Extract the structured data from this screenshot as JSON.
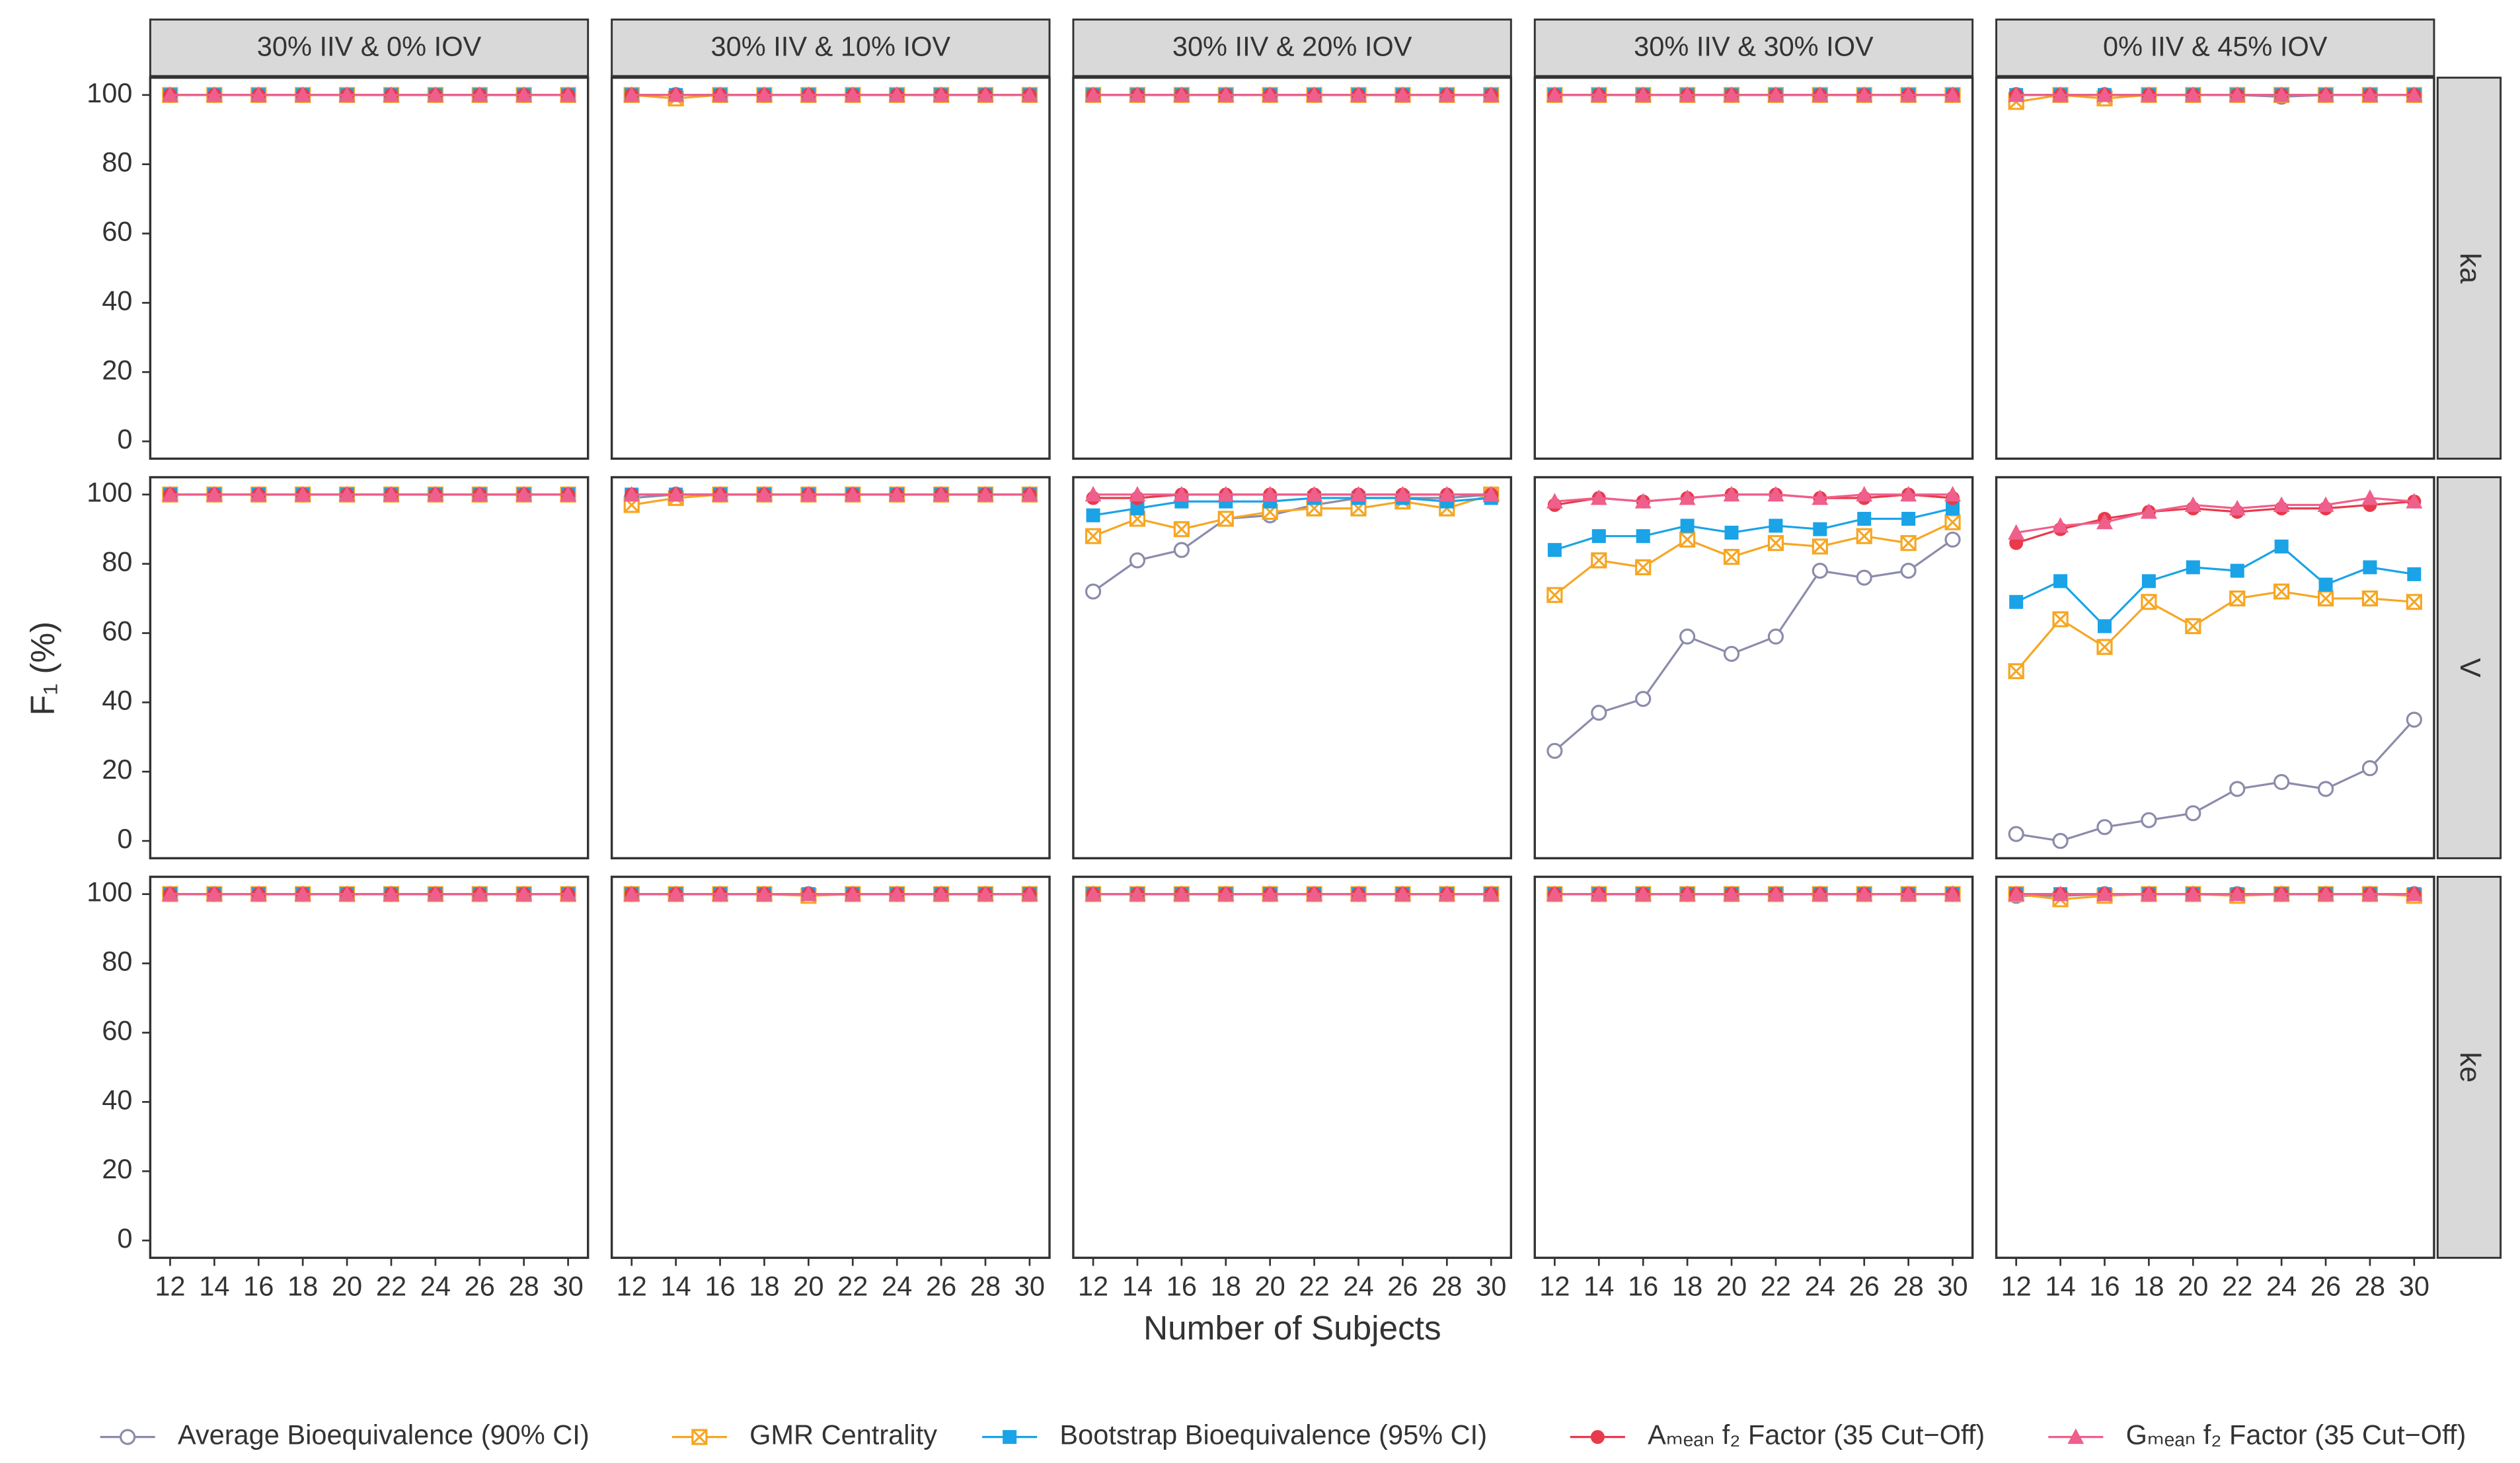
{
  "chart_data": {
    "type": "line",
    "xlabel": "Number of Subjects",
    "ylabel": "F₁ (%)",
    "columns": [
      "30% IIV & 0% IOV",
      "30% IIV & 10% IOV",
      "30% IIV & 20% IOV",
      "30% IIV & 30% IOV",
      "0% IIV & 45% IOV"
    ],
    "rows": [
      "ka",
      "V",
      "ke"
    ],
    "x": [
      12,
      14,
      16,
      18,
      20,
      22,
      24,
      26,
      28,
      30
    ],
    "xlim": [
      11.1,
      30.9
    ],
    "xticks": [
      12,
      14,
      16,
      18,
      20,
      22,
      24,
      26,
      28,
      30
    ],
    "ylim": [
      -5,
      105
    ],
    "yticks": [
      0,
      20,
      40,
      60,
      80,
      100
    ],
    "grid": false,
    "legend": "bottom",
    "series": [
      {
        "name": "Average Bioequivalence (90% CI)",
        "color": "#8b8bab",
        "marker": "open-circle"
      },
      {
        "name": "GMR Centrality",
        "color": "#f6a623",
        "marker": "crossed-square"
      },
      {
        "name": "Bootstrap Bioequivalence (95% CI)",
        "color": "#1aa3e6",
        "marker": "square"
      },
      {
        "name": "Aₘₑₐₙ f₂ Factor (35 Cut−Off)",
        "color": "#e83a4b",
        "marker": "circle"
      },
      {
        "name": "Gₘₑₐₙ f₂ Factor (35 Cut−Off)",
        "color": "#ef5f8c",
        "marker": "triangle"
      }
    ],
    "panels": [
      [
        [
          [
            100,
            100,
            100,
            100,
            100,
            100,
            100,
            100,
            100,
            100
          ],
          [
            100,
            100,
            100,
            100,
            100,
            100,
            100,
            100,
            100,
            100
          ],
          [
            100,
            100,
            100,
            100,
            100,
            100,
            100,
            100,
            100,
            100
          ],
          [
            100,
            100,
            100,
            100,
            100,
            100,
            100,
            100,
            100,
            100
          ],
          [
            100,
            100,
            100,
            100,
            100,
            100,
            100,
            100,
            100,
            100
          ]
        ],
        [
          [
            100,
            100,
            100,
            100,
            100,
            100,
            100,
            100,
            100,
            100
          ],
          [
            100,
            99,
            100,
            100,
            100,
            100,
            100,
            100,
            100,
            100
          ],
          [
            100,
            100,
            100,
            100,
            100,
            100,
            100,
            100,
            100,
            100
          ],
          [
            100,
            100,
            100,
            100,
            100,
            100,
            100,
            100,
            100,
            100
          ],
          [
            100,
            100,
            100,
            100,
            100,
            100,
            100,
            100,
            100,
            100
          ]
        ],
        [
          [
            100,
            100,
            100,
            100,
            100,
            100,
            100,
            100,
            100,
            100
          ],
          [
            100,
            100,
            100,
            100,
            100,
            100,
            100,
            100,
            100,
            100
          ],
          [
            100,
            100,
            100,
            100,
            100,
            100,
            100,
            100,
            100,
            100
          ],
          [
            100,
            100,
            100,
            100,
            100,
            100,
            100,
            100,
            100,
            100
          ],
          [
            100,
            100,
            100,
            100,
            100,
            100,
            100,
            100,
            100,
            100
          ]
        ],
        [
          [
            100,
            100,
            100,
            100,
            100,
            100,
            100,
            100,
            100,
            100
          ],
          [
            100,
            100,
            100,
            100,
            100,
            100,
            100,
            100,
            100,
            100
          ],
          [
            100,
            100,
            100,
            100,
            100,
            100,
            100,
            100,
            100,
            100
          ],
          [
            100,
            100,
            100,
            100,
            100,
            100,
            100,
            100,
            100,
            100
          ],
          [
            100,
            100,
            100,
            100,
            100,
            100,
            100,
            100,
            100,
            100
          ]
        ],
        [
          [
            100,
            100,
            100,
            100,
            100,
            100,
            99.5,
            100,
            100,
            100
          ],
          [
            98,
            100,
            99,
            100,
            100,
            100,
            100,
            100,
            100,
            100
          ],
          [
            100,
            100,
            100,
            100,
            100,
            100,
            100,
            100,
            100,
            100
          ],
          [
            100,
            100,
            100,
            100,
            100,
            100,
            100,
            100,
            100,
            100
          ],
          [
            100,
            100,
            100,
            100,
            100,
            100,
            100,
            100,
            100,
            100
          ]
        ]
      ],
      [
        [
          [
            100,
            100,
            100,
            100,
            100,
            100,
            100,
            100,
            100,
            100
          ],
          [
            100,
            100,
            100,
            100,
            100,
            100,
            100,
            100,
            100,
            100
          ],
          [
            100,
            100,
            100,
            100,
            100,
            100,
            100,
            100,
            100,
            100
          ],
          [
            100,
            100,
            100,
            100,
            100,
            100,
            100,
            100,
            100,
            100
          ],
          [
            100,
            100,
            100,
            100,
            100,
            100,
            100,
            100,
            100,
            100
          ]
        ],
        [
          [
            99,
            100,
            100,
            100,
            100,
            100,
            100,
            100,
            100,
            100
          ],
          [
            97,
            99,
            100,
            100,
            100,
            100,
            100,
            100,
            100,
            100
          ],
          [
            100,
            100,
            100,
            100,
            100,
            100,
            100,
            100,
            100,
            100
          ],
          [
            100,
            100,
            100,
            100,
            100,
            100,
            100,
            100,
            100,
            100
          ],
          [
            100,
            100,
            100,
            100,
            100,
            100,
            100,
            100,
            100,
            100
          ]
        ],
        [
          [
            72,
            81,
            84,
            93,
            94,
            97,
            99,
            99,
            99,
            100
          ],
          [
            88,
            93,
            90,
            93,
            95,
            96,
            96,
            98,
            96,
            100
          ],
          [
            94,
            96,
            98,
            98,
            98,
            99,
            99,
            99,
            98,
            99
          ],
          [
            99,
            99,
            100,
            100,
            100,
            100,
            100,
            100,
            100,
            100
          ],
          [
            100,
            100,
            100,
            100,
            100,
            100,
            100,
            100,
            100,
            100
          ]
        ],
        [
          [
            26,
            37,
            41,
            59,
            54,
            59,
            78,
            76,
            78,
            87
          ],
          [
            71,
            81,
            79,
            87,
            82,
            86,
            85,
            88,
            86,
            92
          ],
          [
            84,
            88,
            88,
            91,
            89,
            91,
            90,
            93,
            93,
            96
          ],
          [
            97,
            99,
            98,
            99,
            100,
            100,
            99,
            99,
            100,
            99
          ],
          [
            98,
            99,
            98,
            99,
            100,
            100,
            99,
            100,
            100,
            100
          ]
        ],
        [
          [
            2,
            0,
            4,
            6,
            8,
            15,
            17,
            15,
            21,
            35
          ],
          [
            49,
            64,
            56,
            69,
            62,
            70,
            72,
            70,
            70,
            69
          ],
          [
            69,
            75,
            62,
            75,
            79,
            78,
            85,
            74,
            79,
            77
          ],
          [
            86,
            90,
            93,
            95,
            96,
            95,
            96,
            96,
            97,
            98
          ],
          [
            89,
            91,
            92,
            95,
            97,
            96,
            97,
            97,
            99,
            98
          ]
        ]
      ],
      [
        [
          [
            100,
            100,
            100,
            100,
            100,
            100,
            100,
            100,
            100,
            100
          ],
          [
            100,
            100,
            100,
            100,
            100,
            100,
            100,
            100,
            100,
            100
          ],
          [
            100,
            100,
            100,
            100,
            100,
            100,
            100,
            100,
            100,
            100
          ],
          [
            100,
            100,
            100,
            100,
            100,
            100,
            100,
            100,
            100,
            100
          ],
          [
            100,
            100,
            100,
            100,
            100,
            100,
            100,
            100,
            100,
            100
          ]
        ],
        [
          [
            100,
            100,
            100,
            100,
            100,
            100,
            100,
            100,
            100,
            100
          ],
          [
            100,
            100,
            100,
            100,
            99.5,
            100,
            100,
            100,
            100,
            100
          ],
          [
            100,
            100,
            100,
            100,
            100,
            100,
            100,
            100,
            100,
            100
          ],
          [
            100,
            100,
            100,
            100,
            100,
            100,
            100,
            100,
            100,
            100
          ],
          [
            100,
            100,
            100,
            100,
            100,
            100,
            100,
            100,
            100,
            100
          ]
        ],
        [
          [
            100,
            100,
            100,
            100,
            100,
            100,
            100,
            100,
            100,
            100
          ],
          [
            100,
            100,
            100,
            100,
            100,
            100,
            100,
            100,
            100,
            100
          ],
          [
            100,
            100,
            100,
            100,
            100,
            100,
            100,
            100,
            100,
            100
          ],
          [
            100,
            100,
            100,
            100,
            100,
            100,
            100,
            100,
            100,
            100
          ],
          [
            100,
            100,
            100,
            100,
            100,
            100,
            100,
            100,
            100,
            100
          ]
        ],
        [
          [
            100,
            100,
            100,
            100,
            100,
            100,
            100,
            100,
            100,
            100
          ],
          [
            100,
            100,
            100,
            100,
            100,
            100,
            100,
            100,
            100,
            100
          ],
          [
            100,
            100,
            100,
            100,
            100,
            100,
            100,
            100,
            100,
            100
          ],
          [
            100,
            100,
            100,
            100,
            100,
            100,
            100,
            100,
            100,
            100
          ],
          [
            100,
            100,
            100,
            100,
            100,
            100,
            100,
            100,
            100,
            100
          ]
        ],
        [
          [
            99.5,
            99.5,
            100,
            100,
            100,
            100,
            100,
            100,
            100,
            100
          ],
          [
            100,
            98.5,
            99.5,
            100,
            100,
            99.5,
            100,
            100,
            100,
            99.5
          ],
          [
            100,
            100,
            100,
            100,
            100,
            100,
            100,
            100,
            100,
            100
          ],
          [
            100,
            100,
            100,
            100,
            100,
            100,
            100,
            100,
            100,
            100
          ],
          [
            100,
            100,
            100,
            100,
            100,
            100,
            100,
            100,
            100,
            100
          ]
        ]
      ]
    ]
  }
}
